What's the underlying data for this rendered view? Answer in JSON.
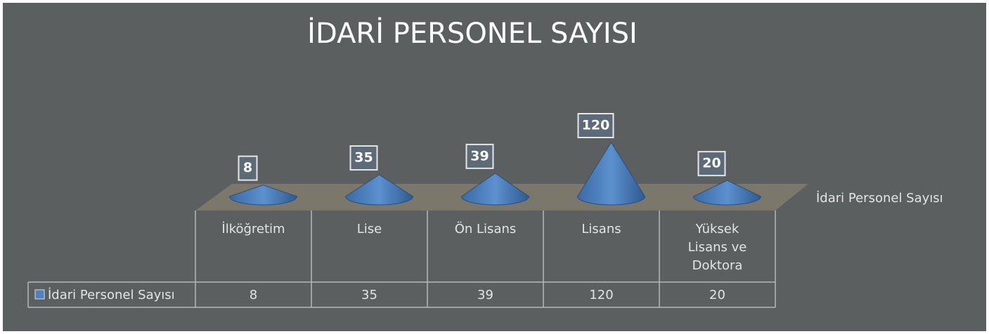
{
  "chart_data": {
    "type": "cone",
    "title": "İDARİ PERSONEL SAYISI",
    "categories": [
      "İlköğretim",
      "Lise",
      "Ön Lisans",
      "Lisans",
      "Yüksek Lisans ve Doktora"
    ],
    "series": [
      {
        "name": "İdari Personel Sayısı",
        "color": "#4f81bd",
        "values": [
          8,
          35,
          39,
          120,
          20
        ]
      }
    ],
    "legend": "right",
    "data_table": true
  }
}
